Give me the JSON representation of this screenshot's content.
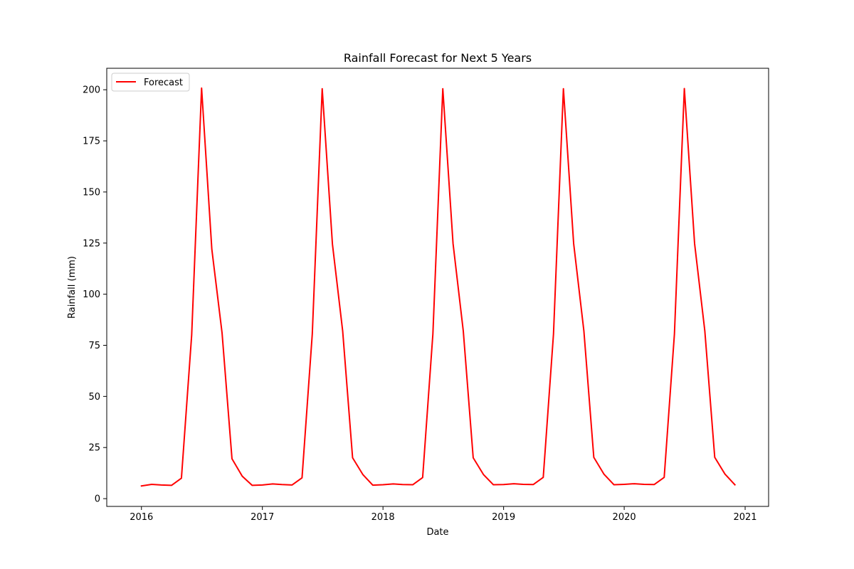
{
  "chart_data": {
    "type": "line",
    "title": "Rainfall Forecast for Next 5 Years",
    "xlabel": "Date",
    "ylabel": "Rainfall (mm)",
    "x_axis": "date",
    "xlim": [
      "2015-09-18",
      "2021-03-13"
    ],
    "ylim": [
      -3.8,
      210.5
    ],
    "x_ticks": [
      "2016",
      "2017",
      "2018",
      "2019",
      "2020",
      "2021"
    ],
    "y_ticks": [
      0,
      25,
      50,
      75,
      100,
      125,
      150,
      175,
      200
    ],
    "grid": false,
    "legend": "upper-left",
    "series": [
      {
        "name": "Forecast",
        "color": "#ff0000",
        "x": [
          "2016-01-01",
          "2016-02-01",
          "2016-03-01",
          "2016-04-01",
          "2016-05-01",
          "2016-06-01",
          "2016-07-01",
          "2016-08-01",
          "2016-09-01",
          "2016-10-01",
          "2016-11-01",
          "2016-12-01",
          "2017-01-01",
          "2017-02-01",
          "2017-03-01",
          "2017-04-01",
          "2017-05-01",
          "2017-06-01",
          "2017-07-01",
          "2017-08-01",
          "2017-09-01",
          "2017-10-01",
          "2017-11-01",
          "2017-12-01",
          "2018-01-01",
          "2018-02-01",
          "2018-03-01",
          "2018-04-01",
          "2018-05-01",
          "2018-06-01",
          "2018-07-01",
          "2018-08-01",
          "2018-09-01",
          "2018-10-01",
          "2018-11-01",
          "2018-12-01",
          "2019-01-01",
          "2019-02-01",
          "2019-03-01",
          "2019-04-01",
          "2019-05-01",
          "2019-06-01",
          "2019-07-01",
          "2019-08-01",
          "2019-09-01",
          "2019-10-01",
          "2019-11-01",
          "2019-12-01",
          "2020-01-01",
          "2020-02-01",
          "2020-03-01",
          "2020-04-01",
          "2020-05-01",
          "2020-06-01",
          "2020-07-01",
          "2020-08-01",
          "2020-09-01",
          "2020-10-01",
          "2020-11-01",
          "2020-12-01"
        ],
        "values": [
          6.2,
          7.0,
          6.7,
          6.5,
          10.0,
          80.0,
          200.8,
          122.0,
          81.0,
          19.5,
          11.0,
          6.5,
          6.7,
          7.2,
          6.9,
          6.7,
          10.2,
          80.5,
          200.5,
          124.5,
          82.0,
          20.0,
          11.8,
          6.6,
          6.8,
          7.2,
          6.9,
          6.8,
          10.3,
          80.5,
          200.5,
          124.8,
          82.0,
          20.0,
          11.8,
          6.8,
          6.9,
          7.3,
          7.0,
          6.9,
          10.4,
          80.5,
          200.5,
          124.8,
          82.0,
          20.2,
          11.9,
          6.8,
          7.0,
          7.3,
          7.0,
          6.9,
          10.4,
          80.5,
          200.6,
          124.8,
          82.0,
          20.2,
          12.0,
          6.8
        ]
      }
    ]
  }
}
